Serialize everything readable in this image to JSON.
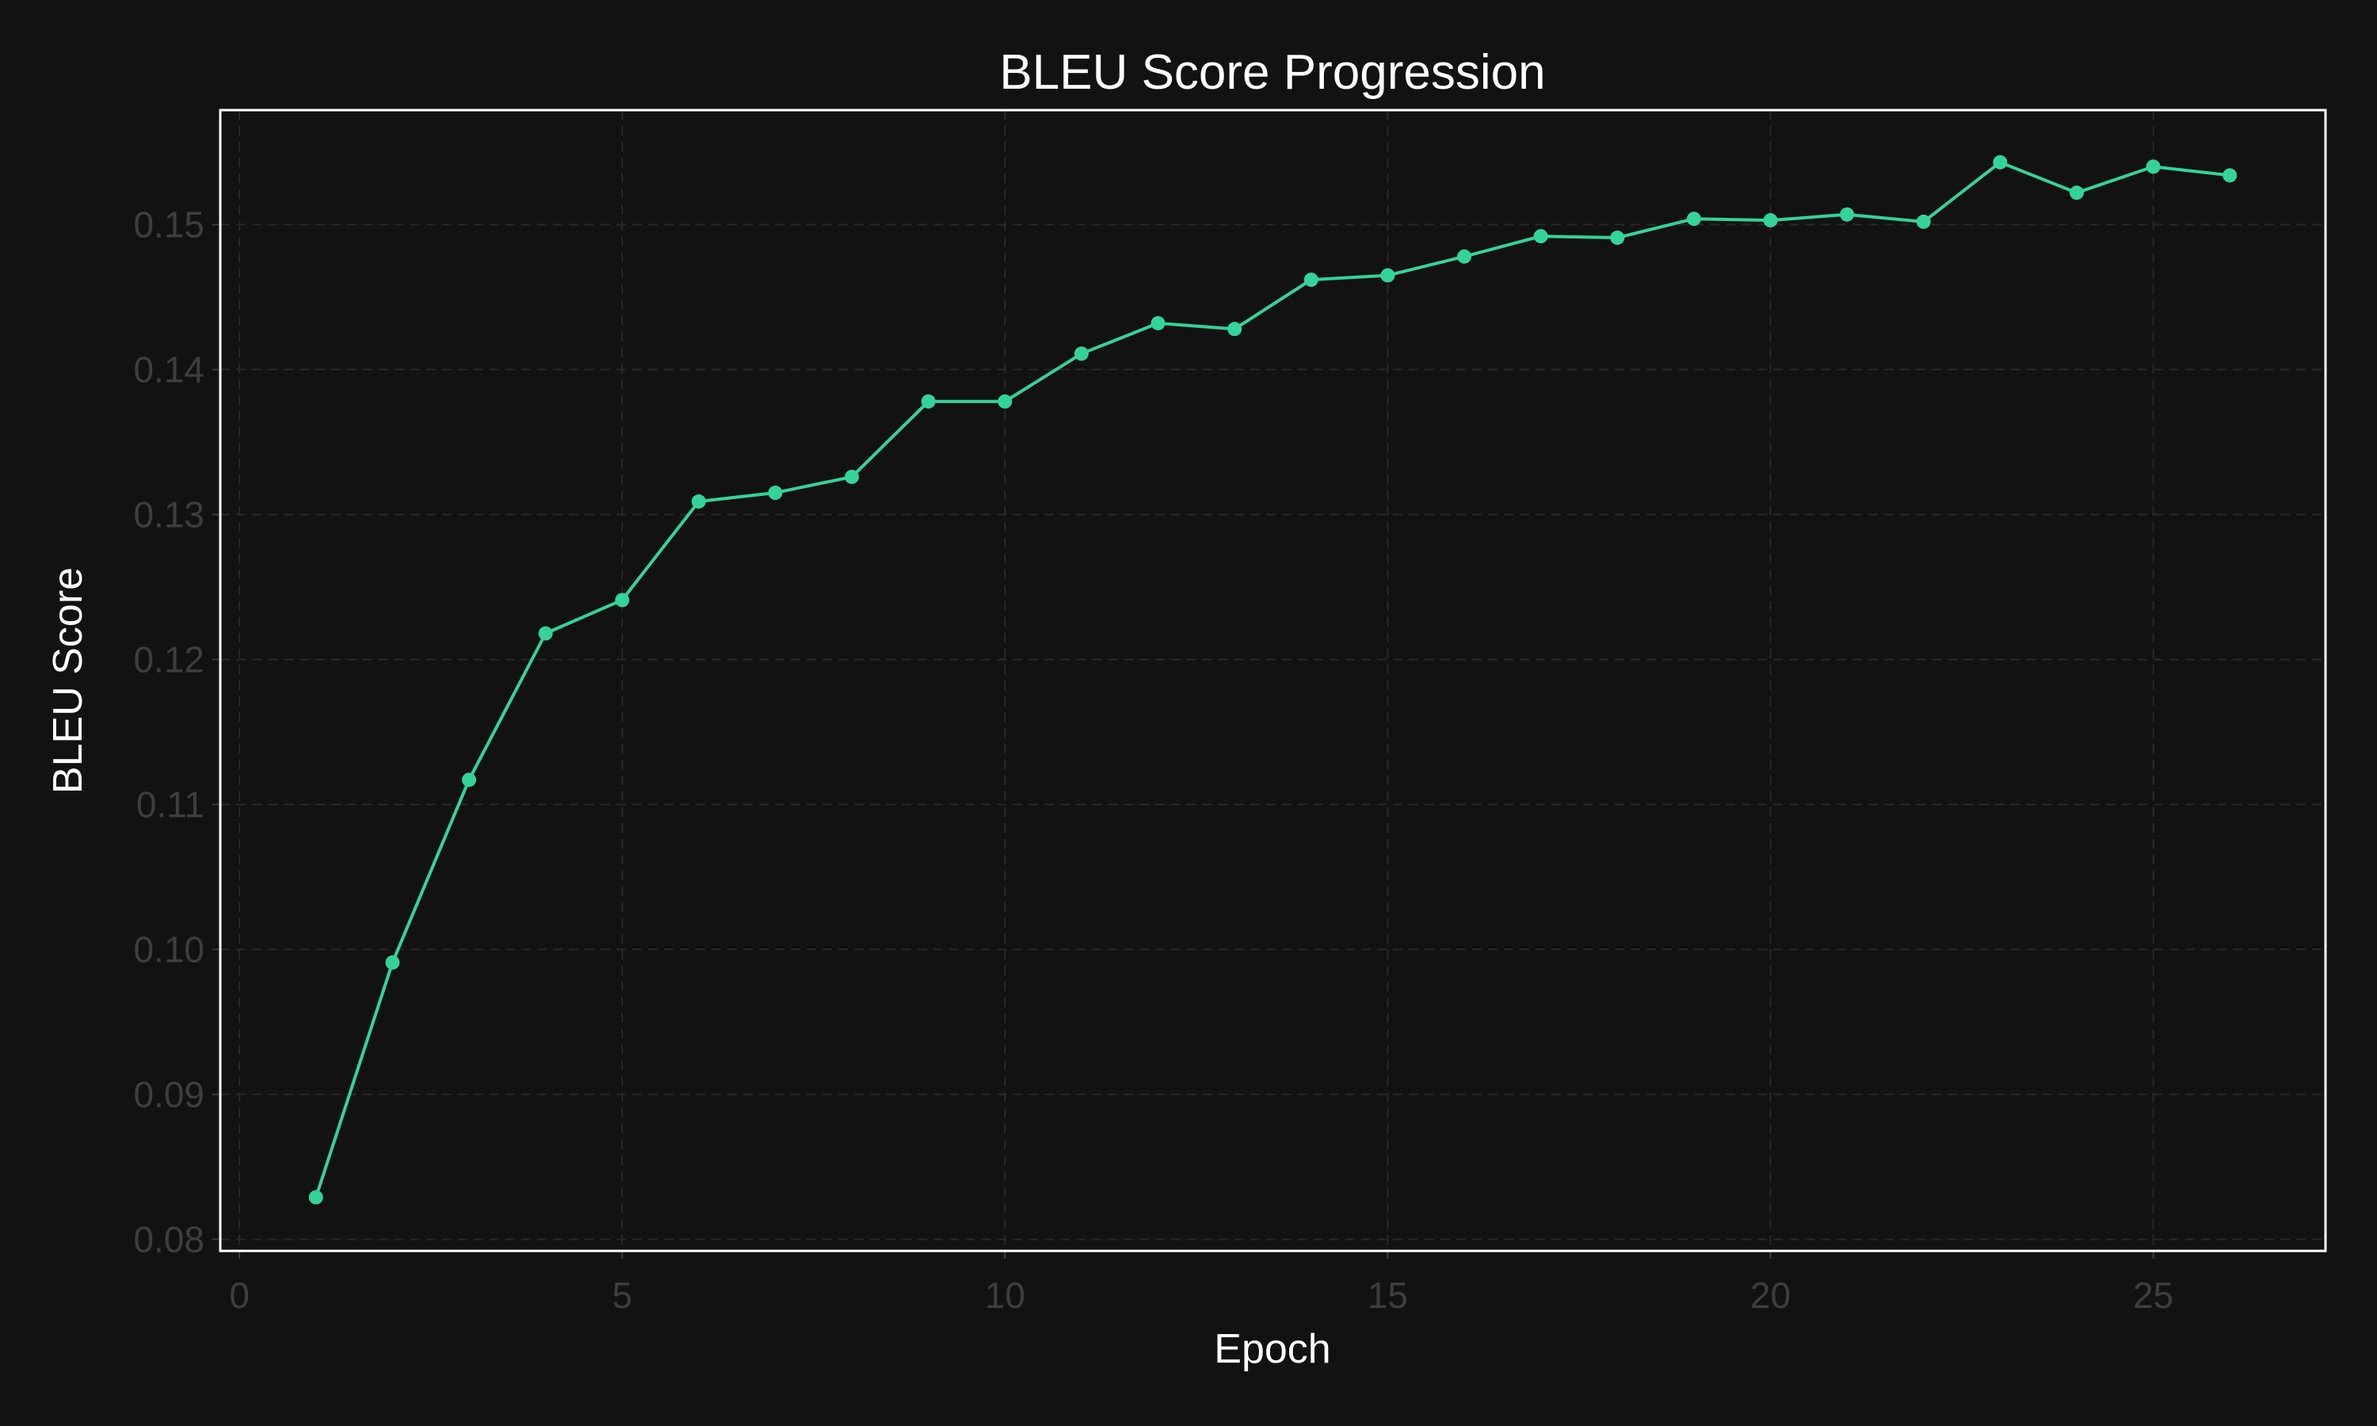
{
  "chart_data": {
    "type": "line",
    "title": "BLEU Score Progression",
    "xlabel": "Epoch",
    "ylabel": "BLEU Score",
    "xlim": [
      -0.25,
      27.25
    ],
    "ylim": [
      0.0792,
      0.1579
    ],
    "x_ticks": [
      0,
      5,
      10,
      15,
      20,
      25
    ],
    "y_ticks": [
      0.08,
      0.09,
      0.1,
      0.11,
      0.12,
      0.13,
      0.14,
      0.15
    ],
    "grid": true,
    "colors": {
      "background": "#121212",
      "line": "#34d399"
    },
    "series": [
      {
        "x": [
          1,
          2,
          3,
          4,
          5,
          6,
          7,
          8,
          9,
          10,
          11,
          12,
          13,
          14,
          15,
          16,
          17,
          18,
          19,
          20,
          21,
          22,
          23,
          24,
          25,
          26
        ],
        "values": [
          0.0829,
          0.0991,
          0.1117,
          0.1218,
          0.1241,
          0.1309,
          0.1315,
          0.1326,
          0.1378,
          0.1378,
          0.1411,
          0.1432,
          0.1428,
          0.1462,
          0.1465,
          0.1478,
          0.1492,
          0.1491,
          0.1504,
          0.1503,
          0.1507,
          0.1502,
          0.1543,
          0.1522,
          0.154,
          0.1534
        ]
      }
    ]
  }
}
